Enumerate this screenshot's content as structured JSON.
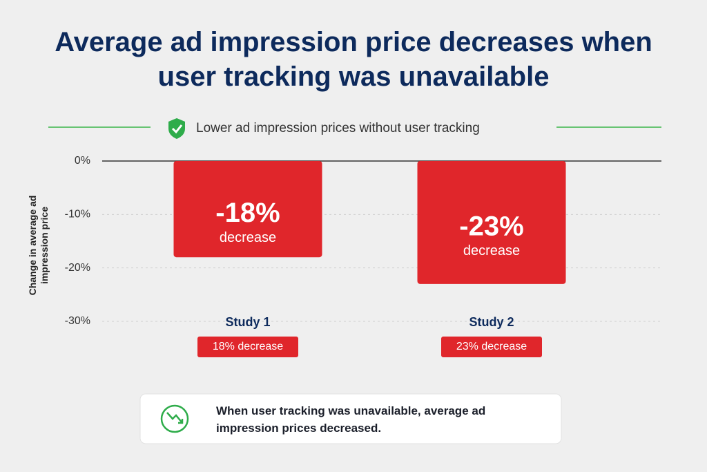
{
  "chart_data": {
    "type": "bar",
    "title": "Average ad impression price decreases when user tracking was unavailable",
    "subtitle": "Lower ad impression prices without user tracking",
    "y_label": "Change in average ad impression price",
    "categories": [
      "Study 1",
      "Study 2"
    ],
    "values": [
      -18,
      -23
    ],
    "value_labels": [
      "-18%",
      "-23%"
    ],
    "bar_notes": [
      "decrease",
      "decrease"
    ],
    "badge_labels": [
      "18% decrease",
      "23% decrease"
    ],
    "color": "#e0262b",
    "ylim": [
      -30,
      0
    ],
    "yticks": [
      {
        "value": 0,
        "label": "0%"
      },
      {
        "value": -10,
        "label": "-10%"
      },
      {
        "value": -20,
        "label": "-20%"
      },
      {
        "value": -30,
        "label": "-30%"
      }
    ],
    "grid": true,
    "footnote": "When user tracking was unavailable, average ad impression prices decreased."
  }
}
